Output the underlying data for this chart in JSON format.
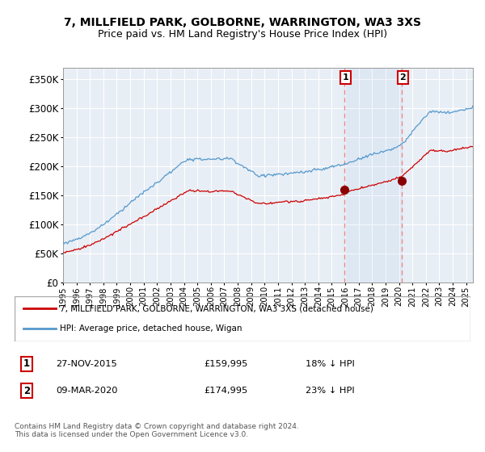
{
  "title": "7, MILLFIELD PARK, GOLBORNE, WARRINGTON, WA3 3XS",
  "subtitle": "Price paid vs. HM Land Registry's House Price Index (HPI)",
  "legend_line1": "7, MILLFIELD PARK, GOLBORNE, WARRINGTON, WA3 3XS (detached house)",
  "legend_line2": "HPI: Average price, detached house, Wigan",
  "annotation1_label": "1",
  "annotation1_date": "27-NOV-2015",
  "annotation1_price": "£159,995",
  "annotation1_hpi": "18% ↓ HPI",
  "annotation2_label": "2",
  "annotation2_date": "09-MAR-2020",
  "annotation2_price": "£174,995",
  "annotation2_hpi": "23% ↓ HPI",
  "footnote": "Contains HM Land Registry data © Crown copyright and database right 2024.\nThis data is licensed under the Open Government Licence v3.0.",
  "hpi_color": "#5599cc",
  "price_color": "#cc0000",
  "marker_color": "#880000",
  "annotation_box_color": "#cc0000",
  "dashed_line_color": "#ee8888",
  "background_color": "#ffffff",
  "plot_bg_color": "#e8eef5",
  "grid_color": "#ffffff",
  "ylim": [
    0,
    370000
  ],
  "yticks": [
    0,
    50000,
    100000,
    150000,
    200000,
    250000,
    300000,
    350000
  ],
  "ytick_labels": [
    "£0",
    "£50K",
    "£100K",
    "£150K",
    "£200K",
    "£250K",
    "£300K",
    "£350K"
  ],
  "sale1_x": 2015.92,
  "sale1_y": 159995,
  "sale2_x": 2020.18,
  "sale2_y": 174995,
  "xmin": 1995,
  "xmax": 2025.5
}
